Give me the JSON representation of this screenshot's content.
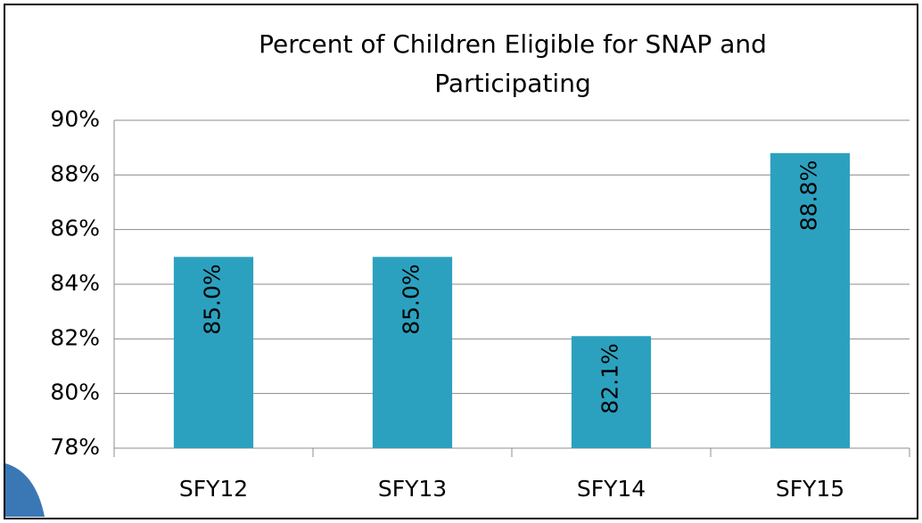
{
  "chart_data": {
    "type": "bar",
    "title": "Percent of Children Eligible for SNAP and Participating",
    "categories": [
      "SFY12",
      "SFY13",
      "SFY14",
      "SFY15"
    ],
    "values": [
      85.0,
      85.0,
      82.1,
      88.8
    ],
    "value_labels": [
      "85.0%",
      "85.0%",
      "82.1%",
      "88.8%"
    ],
    "color": "#2ca1bf",
    "ylim": [
      78,
      90
    ],
    "yticks": [
      {
        "value": 78,
        "label": "78%"
      },
      {
        "value": 80,
        "label": "80%"
      },
      {
        "value": 82,
        "label": "82%"
      },
      {
        "value": 84,
        "label": "84%"
      },
      {
        "value": 86,
        "label": "86%"
      },
      {
        "value": 88,
        "label": "88%"
      },
      {
        "value": 90,
        "label": "90%"
      }
    ],
    "grid": true
  }
}
